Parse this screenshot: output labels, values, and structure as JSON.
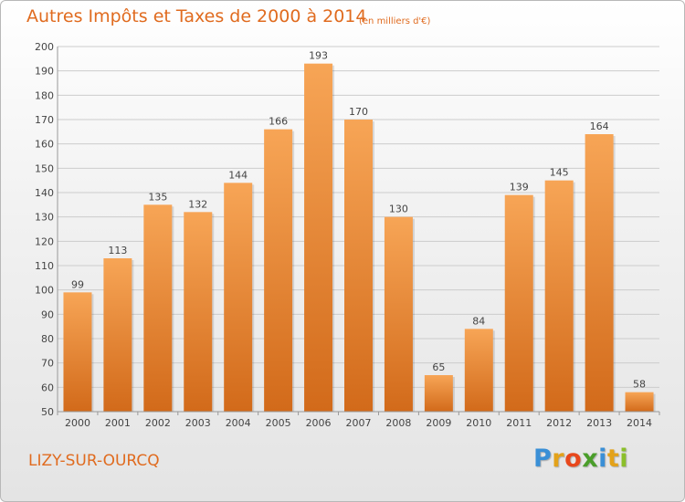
{
  "title": "Autres Impôts et Taxes de 2000 à 2014",
  "subtitle": "(en milliers d'€)",
  "commune": "LIZY-SUR-OURCQ",
  "brand": {
    "letters": [
      "P",
      "r",
      "o",
      "x",
      "i",
      "t",
      "i"
    ],
    "colors": [
      "#3a8fd6",
      "#e3a21a",
      "#e8481c",
      "#4a9e2a",
      "#3a8fd6",
      "#e3a21a",
      "#8bbf2a"
    ]
  },
  "colors": {
    "accent": "#e06b1f",
    "bar_top": "#f7a556",
    "bar_bottom": "#d26a1a",
    "grid": "#cccccc",
    "text": "#444444"
  },
  "chart_data": {
    "type": "bar",
    "title": "Autres Impôts et Taxes de 2000 à 2014",
    "subtitle": "(en milliers d'€)",
    "categories": [
      "2000",
      "2001",
      "2002",
      "2003",
      "2004",
      "2005",
      "2006",
      "2007",
      "2008",
      "2009",
      "2010",
      "2011",
      "2012",
      "2013",
      "2014"
    ],
    "values": [
      99,
      113,
      135,
      132,
      144,
      166,
      193,
      170,
      130,
      65,
      84,
      139,
      145,
      164,
      58
    ],
    "ylim": [
      50,
      200
    ],
    "yticks": [
      50,
      60,
      70,
      80,
      90,
      100,
      110,
      120,
      130,
      140,
      150,
      160,
      170,
      180,
      190,
      200
    ],
    "grid": true,
    "data_labels": true,
    "xlabel": "",
    "ylabel": ""
  }
}
